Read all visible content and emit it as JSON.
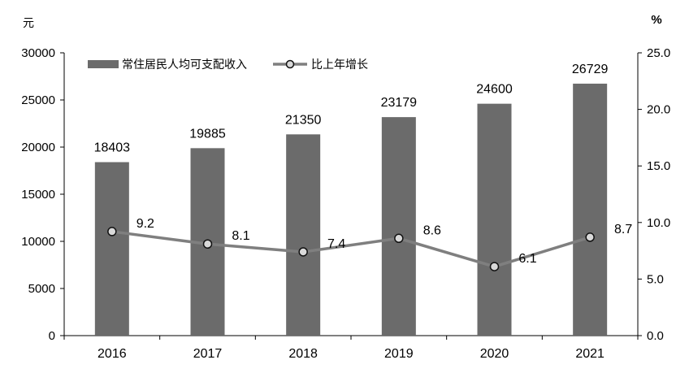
{
  "chart_data": {
    "type": "bar",
    "categories": [
      "2016",
      "2017",
      "2018",
      "2019",
      "2020",
      "2021"
    ],
    "series": [
      {
        "name": "常住居民人均可支配收入",
        "type": "bar",
        "axis": "left",
        "values": [
          18403,
          19885,
          21350,
          23179,
          24600,
          26729
        ]
      },
      {
        "name": "比上年增长",
        "type": "line",
        "axis": "right",
        "values": [
          9.2,
          8.1,
          7.4,
          8.6,
          6.1,
          8.7
        ]
      }
    ],
    "y_left": {
      "unit": "元",
      "range": [
        0,
        30000
      ],
      "ticks": [
        "0",
        "5000",
        "10000",
        "15000",
        "20000",
        "25000",
        "30000"
      ]
    },
    "y_right": {
      "unit": "%",
      "range": [
        0,
        25
      ],
      "ticks": [
        "0.0",
        "5.0",
        "10.0",
        "15.0",
        "20.0",
        "25.0"
      ]
    },
    "bar_labels": [
      "18403",
      "19885",
      "21350",
      "23179",
      "24600",
      "26729"
    ],
    "line_labels": [
      "9.2",
      "8.1",
      "7.4",
      "8.6",
      "6.1",
      "8.7"
    ],
    "legend": {
      "position": "top-left",
      "items": [
        "常住居民人均可支配收入",
        "比上年增长"
      ]
    },
    "grid": false,
    "colors": {
      "bar": "#6b6b6b",
      "line": "#7f7f7f",
      "marker_fill": "#d9d9d9",
      "marker_stroke": "#111111",
      "axis": "#000000"
    }
  }
}
